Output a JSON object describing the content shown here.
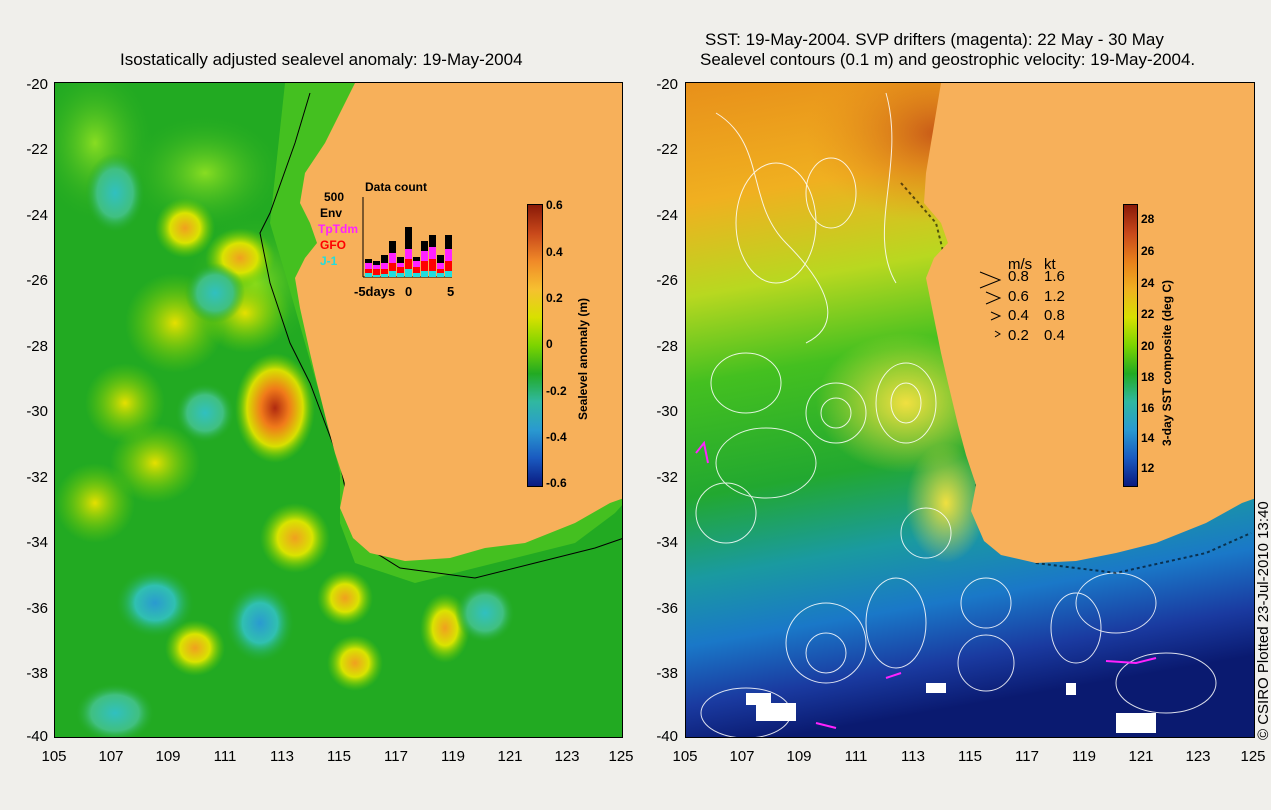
{
  "left_panel": {
    "title": "Isostatically adjusted sealevel anomaly: 19-May-2004",
    "y_ticks": [
      "-20",
      "-22",
      "-24",
      "-26",
      "-28",
      "-30",
      "-32",
      "-34",
      "-36",
      "-38",
      "-40"
    ],
    "x_ticks": [
      "105",
      "107",
      "109",
      "111",
      "113",
      "115",
      "117",
      "119",
      "121",
      "123",
      "125"
    ],
    "colorbar": {
      "label": "Sealevel anomaly (m)",
      "ticks": [
        "0.6",
        "0.4",
        "0.2",
        "0",
        "-0.2",
        "-0.4",
        "-0.6"
      ]
    },
    "inset": {
      "title": "Data count",
      "max_label": "500",
      "legend": [
        "Env",
        "TpTdm",
        "GFO",
        "J-1"
      ],
      "legend_colors": [
        "#000000",
        "#ff22ff",
        "#ff0000",
        "#22dddd"
      ],
      "x_labels": [
        "-5days",
        "0",
        "5"
      ]
    }
  },
  "right_panel": {
    "title_line1": "SST: 19-May-2004. SVP drifters (magenta): 22 May - 30 May",
    "title_line2": "Sealevel contours (0.1 m) and geostrophic velocity: 19-May-2004.",
    "y_ticks": [
      "-20",
      "-22",
      "-24",
      "-26",
      "-28",
      "-30",
      "-32",
      "-34",
      "-36",
      "-38",
      "-40"
    ],
    "x_ticks": [
      "105",
      "107",
      "109",
      "111",
      "113",
      "115",
      "117",
      "119",
      "121",
      "123",
      "125"
    ],
    "colorbar": {
      "label": "3-day SST composite (deg C)",
      "ticks": [
        "28",
        "26",
        "24",
        "22",
        "20",
        "18",
        "16",
        "14",
        "12"
      ]
    },
    "velocity_legend": {
      "header_ms": "m/s",
      "header_kt": "kt",
      "rows": [
        {
          "ms": "0.8",
          "kt": "1.6"
        },
        {
          "ms": "0.6",
          "kt": "1.2"
        },
        {
          "ms": "0.4",
          "kt": "0.8"
        },
        {
          "ms": "0.2",
          "kt": "0.4"
        }
      ]
    }
  },
  "credit": "© CSIRO Plotted 23-Jul-2010 13:40",
  "colors": {
    "land": "#f7b05a",
    "sla_base": "#22aa22",
    "background": "#f0efeb"
  }
}
